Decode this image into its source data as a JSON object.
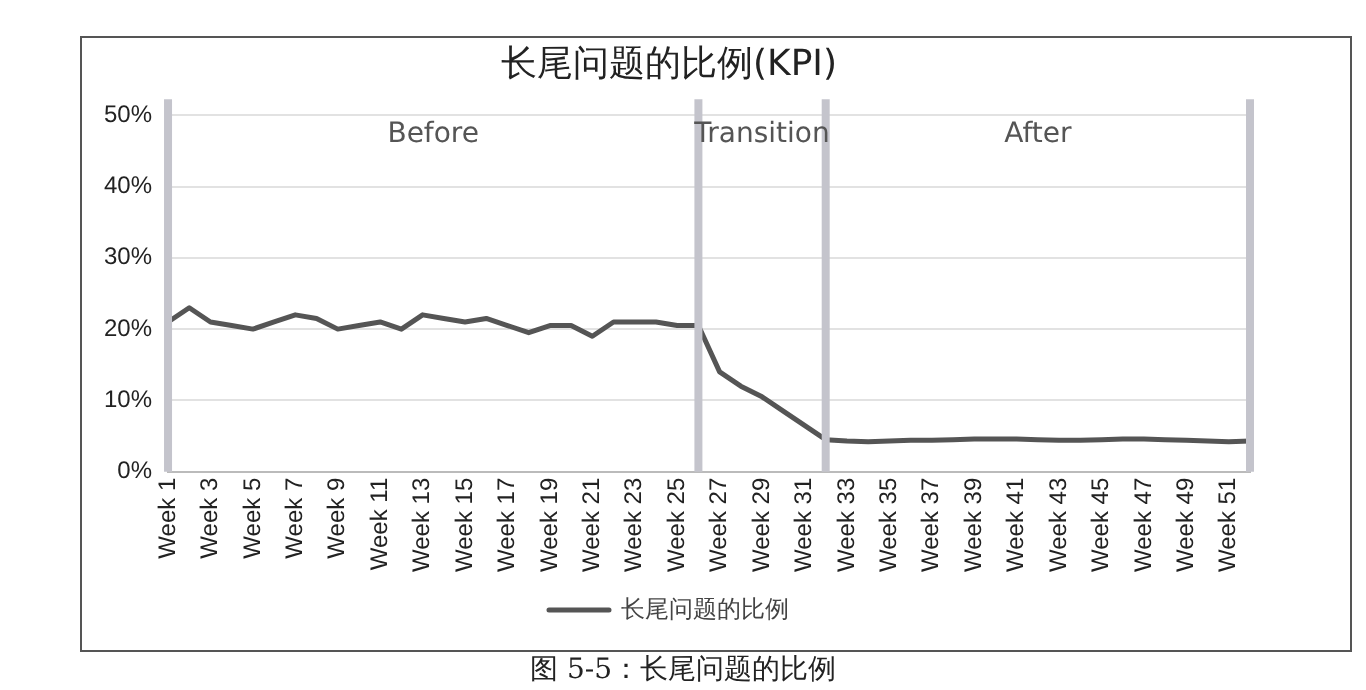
{
  "chart_data": {
    "type": "line",
    "title": "长尾问题的比例(KPI)",
    "categories": [
      "Week 1",
      null,
      "Week 3",
      null,
      "Week 5",
      null,
      "Week 7",
      null,
      "Week 9",
      null,
      "Week 11",
      null,
      "Week 13",
      null,
      "Week 15",
      null,
      "Week 17",
      null,
      "Week 19",
      null,
      "Week 21",
      null,
      "Week 23",
      null,
      "Week 25",
      null,
      "Week 27",
      null,
      "Week 29",
      null,
      "Week 31",
      null,
      "Week 33",
      null,
      "Week 35",
      null,
      "Week 37",
      null,
      "Week 39",
      null,
      "Week 41",
      null,
      "Week 43",
      null,
      "Week 45",
      null,
      "Week 47",
      null,
      "Week 49",
      null,
      "Week 51",
      null
    ],
    "series": [
      {
        "name": "长尾问题的比例",
        "color": "#555555",
        "values": [
          21,
          23,
          21,
          20.5,
          20,
          21,
          22,
          21.5,
          20,
          20.5,
          21,
          20,
          22,
          21.5,
          21,
          21.5,
          20.5,
          19.5,
          20.5,
          20.5,
          19,
          21,
          21,
          21,
          20.5,
          20.5,
          14,
          12,
          10.5,
          8.5,
          6.5,
          4.5,
          4.3,
          4.2,
          4.3,
          4.4,
          4.4,
          4.5,
          4.6,
          4.6,
          4.6,
          4.5,
          4.4,
          4.4,
          4.5,
          4.6,
          4.6,
          4.5,
          4.4,
          4.3,
          4.2,
          4.3
        ]
      }
    ],
    "ylim": [
      0,
      50
    ],
    "yticks": [
      {
        "value": 0,
        "label": "0%"
      },
      {
        "value": 10,
        "label": "10%"
      },
      {
        "value": 20,
        "label": "20%"
      },
      {
        "value": 30,
        "label": "30%"
      },
      {
        "value": 40,
        "label": "40%"
      },
      {
        "value": 50,
        "label": "50%"
      }
    ],
    "grid": "y",
    "legend": "bottom",
    "line_style": "solid",
    "annotations": [
      "Before",
      "Transition",
      "After",
      "图 5-5：长尾问题的比例"
    ]
  }
}
